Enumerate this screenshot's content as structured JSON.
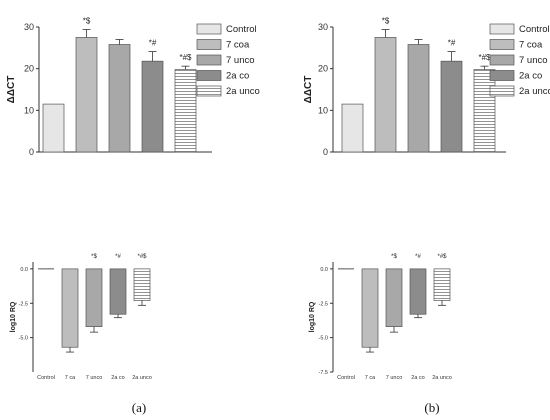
{
  "chart_data": [
    {
      "panel": "a-top",
      "type": "bar",
      "categories": [
        "Control",
        "7 coa",
        "7 unco",
        "2a co",
        "2a unco"
      ],
      "values": [
        11.5,
        27.5,
        25.8,
        21.8,
        19.8
      ],
      "errors": [
        0,
        1.9,
        1.2,
        2.3,
        0.8
      ],
      "annotations": [
        "",
        "*$",
        "",
        "*#",
        "*#$"
      ],
      "ylabel": "ΔΔCT",
      "yticks": [
        "0",
        "10",
        "20",
        "30"
      ],
      "ylim": [
        0,
        30
      ],
      "legend": [
        "Control",
        "7 coa",
        "7 unco",
        "2a co",
        "2a unco"
      ],
      "legend_position": "right"
    },
    {
      "panel": "b-top",
      "type": "bar",
      "categories": [
        "Control",
        "7 coa",
        "7 unco",
        "2a co",
        "2a unco"
      ],
      "values": [
        11.5,
        27.5,
        25.8,
        21.8,
        19.8
      ],
      "errors": [
        0,
        1.9,
        1.2,
        2.3,
        0.8
      ],
      "annotations": [
        "",
        "*$",
        "",
        "*#",
        "*#$"
      ],
      "ylabel": "ΔΔCT",
      "yticks": [
        "0",
        "10",
        "20",
        "30"
      ],
      "ylim": [
        0,
        30
      ],
      "legend": [
        "Control",
        "7 coa",
        "7 unco",
        "2a co",
        "2a unco"
      ],
      "legend_position": "right"
    },
    {
      "panel": "a-bottom",
      "type": "bar",
      "categories": [
        "Control",
        "7 ca",
        "7 unco",
        "2a co",
        "2a unco"
      ],
      "values": [
        0.0,
        -5.7,
        -4.2,
        -3.3,
        -2.3
      ],
      "errors": [
        0,
        0.35,
        0.4,
        0.25,
        0.35
      ],
      "annotations": [
        "",
        "",
        "*$",
        "*#",
        "*#$"
      ],
      "ylabel": "log10 RQ",
      "yticks": [
        "0.0",
        "-2.5",
        "-5.0"
      ],
      "ylim": [
        -7.5,
        0.5
      ]
    },
    {
      "panel": "b-bottom",
      "type": "bar",
      "categories": [
        "Control",
        "7 ca",
        "7 unco",
        "2a co",
        "2a unco"
      ],
      "values": [
        0.0,
        -5.7,
        -4.2,
        -3.3,
        -2.3
      ],
      "errors": [
        0,
        0.35,
        0.4,
        0.25,
        0.35
      ],
      "annotations": [
        "",
        "",
        "*$",
        "*#",
        "*#$"
      ],
      "ylabel": "log10 RQ",
      "yticks": [
        "0.0",
        "-2.5",
        "-5.0",
        "-7.5"
      ],
      "ylim": [
        -7.5,
        0.5
      ]
    }
  ],
  "captions": {
    "a": "(a)",
    "b": "(b)"
  },
  "colors": {
    "control": "#e6e6e6",
    "seven_coa": "#bdbdbd",
    "seven_unco": "#a8a8a8",
    "two_a_co": "#8c8c8c",
    "two_a_unco_fill": "#ffffff",
    "hatch": "#777777",
    "axis": "#333333"
  }
}
